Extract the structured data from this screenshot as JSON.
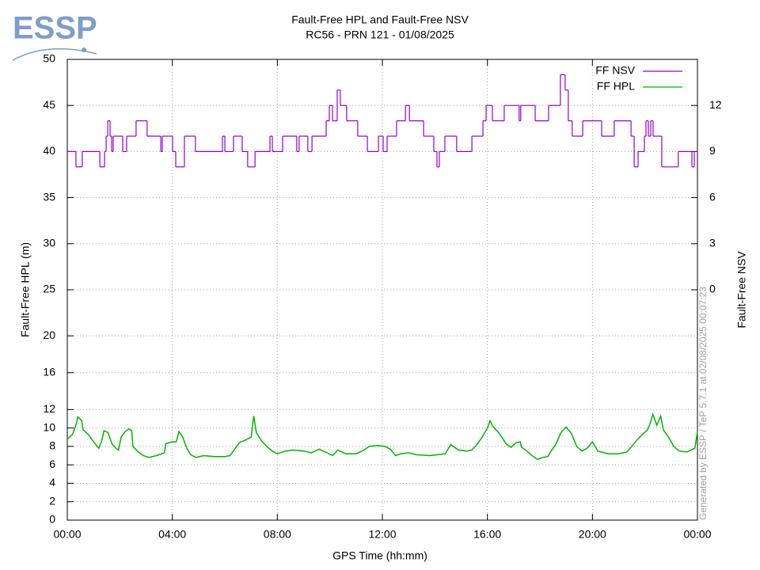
{
  "logo": "ESSP",
  "watermark": "Generated by ESSP / TeP 5.7.1 at 02/08/2025 00:07:23",
  "chart_data": {
    "type": "line",
    "title": "Fault-Free HPL and Fault-Free NSV",
    "subtitle": "RC56 - PRN 121 - 01/08/2025",
    "x_label": "GPS Time (hh:mm)",
    "y_label": "Fault-Free HPL (m)",
    "y2_label": "Fault-Free NSV",
    "xlim": [
      0,
      24
    ],
    "xticks": [
      {
        "value": 0,
        "label": "00:00"
      },
      {
        "value": 4,
        "label": "04:00"
      },
      {
        "value": 8,
        "label": "08:00"
      },
      {
        "value": 12,
        "label": "12:00"
      },
      {
        "value": 16,
        "label": "16:00"
      },
      {
        "value": 20,
        "label": "20:00"
      },
      {
        "value": 24,
        "label": "00:00"
      }
    ],
    "ylim": [
      0,
      50
    ],
    "yticks": [
      0,
      2,
      4,
      6,
      8,
      10,
      12,
      16,
      20,
      25,
      30,
      35,
      40,
      45,
      50
    ],
    "y2lim": [
      -15,
      15
    ],
    "y2ticks": [
      0,
      3,
      6,
      9,
      12
    ],
    "grid": true,
    "legend": "top-right",
    "series": [
      {
        "name": "FF NSV",
        "color": "#9400d3",
        "axis": "y2",
        "step": true,
        "x": [
          0,
          0.33,
          0.57,
          1.24,
          1.42,
          1.48,
          1.54,
          1.63,
          1.69,
          1.75,
          2.11,
          2.26,
          2.62,
          3.04,
          3.56,
          3.62,
          4.01,
          4.13,
          4.46,
          4.88,
          5.91,
          6.0,
          6.33,
          6.66,
          6.87,
          7.15,
          7.72,
          7.81,
          8.2,
          8.74,
          8.83,
          9.16,
          9.32,
          9.86,
          9.98,
          10.1,
          10.28,
          10.4,
          10.64,
          11.06,
          11.43,
          11.85,
          12.03,
          12.18,
          12.54,
          12.88,
          13.03,
          13.57,
          13.96,
          14.08,
          14.17,
          14.38,
          14.83,
          15.41,
          15.83,
          15.95,
          16.19,
          16.64,
          17.21,
          17.27,
          17.82,
          18.33,
          18.78,
          18.96,
          19.08,
          19.23,
          19.63,
          20.35,
          20.83,
          21.47,
          21.59,
          21.74,
          21.98,
          22.04,
          22.13,
          22.22,
          22.31,
          22.64,
          23.27,
          23.79,
          23.88,
          24
        ],
        "values": [
          9,
          8,
          9,
          8,
          9,
          10,
          11,
          10,
          9,
          10,
          9,
          10,
          11,
          10,
          9,
          10,
          9,
          8,
          10,
          9,
          10,
          9,
          10,
          9,
          8,
          9,
          10,
          9,
          10,
          9,
          10,
          9,
          10,
          11,
          12,
          11,
          13,
          12,
          11,
          10,
          9,
          10,
          9,
          10,
          11,
          12,
          11,
          10,
          9,
          8,
          9,
          10,
          9,
          10,
          11,
          12,
          11,
          12,
          11,
          12,
          11,
          12,
          14,
          13,
          11,
          10,
          11,
          10,
          11,
          10,
          8,
          9,
          10,
          11,
          10,
          11,
          10,
          8,
          9,
          8,
          9,
          9
        ]
      },
      {
        "name": "FF HPL",
        "color": "#00b400",
        "axis": "y",
        "x": [
          0,
          0.2,
          0.35,
          0.4,
          0.55,
          0.6,
          0.8,
          1.0,
          1.2,
          1.3,
          1.4,
          1.55,
          1.7,
          1.85,
          1.95,
          2.05,
          2.2,
          2.35,
          2.45,
          2.5,
          2.7,
          2.9,
          3.1,
          3.4,
          3.7,
          3.75,
          4.0,
          4.15,
          4.25,
          4.4,
          4.55,
          4.7,
          4.9,
          5.2,
          5.6,
          6.0,
          6.2,
          6.4,
          6.55,
          6.8,
          7.0,
          7.1,
          7.2,
          7.4,
          7.6,
          7.8,
          8.0,
          8.3,
          8.6,
          9.0,
          9.3,
          9.6,
          9.9,
          10.1,
          10.3,
          10.6,
          11.0,
          11.3,
          11.5,
          11.8,
          12.1,
          12.3,
          12.5,
          12.7,
          13.0,
          13.3,
          13.8,
          14.1,
          14.4,
          14.6,
          14.9,
          15.2,
          15.4,
          15.6,
          15.8,
          16.0,
          16.1,
          16.2,
          16.4,
          16.6,
          16.7,
          16.9,
          17.1,
          17.25,
          17.3,
          17.5,
          17.7,
          17.9,
          18.1,
          18.3,
          18.4,
          18.6,
          18.8,
          19.0,
          19.2,
          19.4,
          19.6,
          19.8,
          20.0,
          20.2,
          20.6,
          21.0,
          21.3,
          21.5,
          21.7,
          21.9,
          22.1,
          22.2,
          22.3,
          22.45,
          22.6,
          22.7,
          22.9,
          23.1,
          23.3,
          23.6,
          23.9,
          24
        ],
        "values": [
          8.8,
          9.3,
          10.5,
          11.2,
          10.8,
          9.8,
          9.3,
          8.5,
          7.8,
          8.5,
          9.7,
          9.5,
          8.3,
          7.8,
          7.6,
          9.0,
          9.6,
          9.9,
          9.7,
          8.0,
          7.4,
          7.0,
          6.8,
          7.0,
          7.3,
          8.3,
          8.5,
          8.5,
          9.6,
          9.0,
          7.8,
          7.1,
          6.8,
          7.0,
          6.9,
          6.9,
          7.0,
          7.8,
          8.4,
          8.7,
          9.0,
          11.3,
          9.5,
          8.6,
          8.0,
          7.5,
          7.2,
          7.5,
          7.6,
          7.5,
          7.3,
          7.7,
          7.3,
          7.0,
          7.6,
          7.2,
          7.2,
          7.6,
          8.0,
          8.1,
          8.0,
          7.7,
          7.0,
          7.2,
          7.3,
          7.1,
          7.0,
          7.1,
          7.2,
          8.2,
          7.6,
          7.5,
          7.6,
          8.2,
          9.0,
          10.0,
          10.8,
          10.2,
          9.6,
          8.8,
          8.3,
          7.9,
          8.4,
          8.5,
          7.9,
          7.5,
          7.0,
          6.6,
          6.8,
          6.9,
          7.4,
          8.2,
          9.5,
          10.1,
          9.4,
          8.0,
          7.5,
          7.8,
          8.5,
          7.5,
          7.2,
          7.2,
          7.4,
          8.0,
          8.7,
          9.3,
          9.8,
          10.5,
          11.5,
          10.3,
          11.3,
          9.8,
          9.0,
          8.0,
          7.5,
          7.4,
          7.8,
          9.6
        ]
      }
    ]
  }
}
